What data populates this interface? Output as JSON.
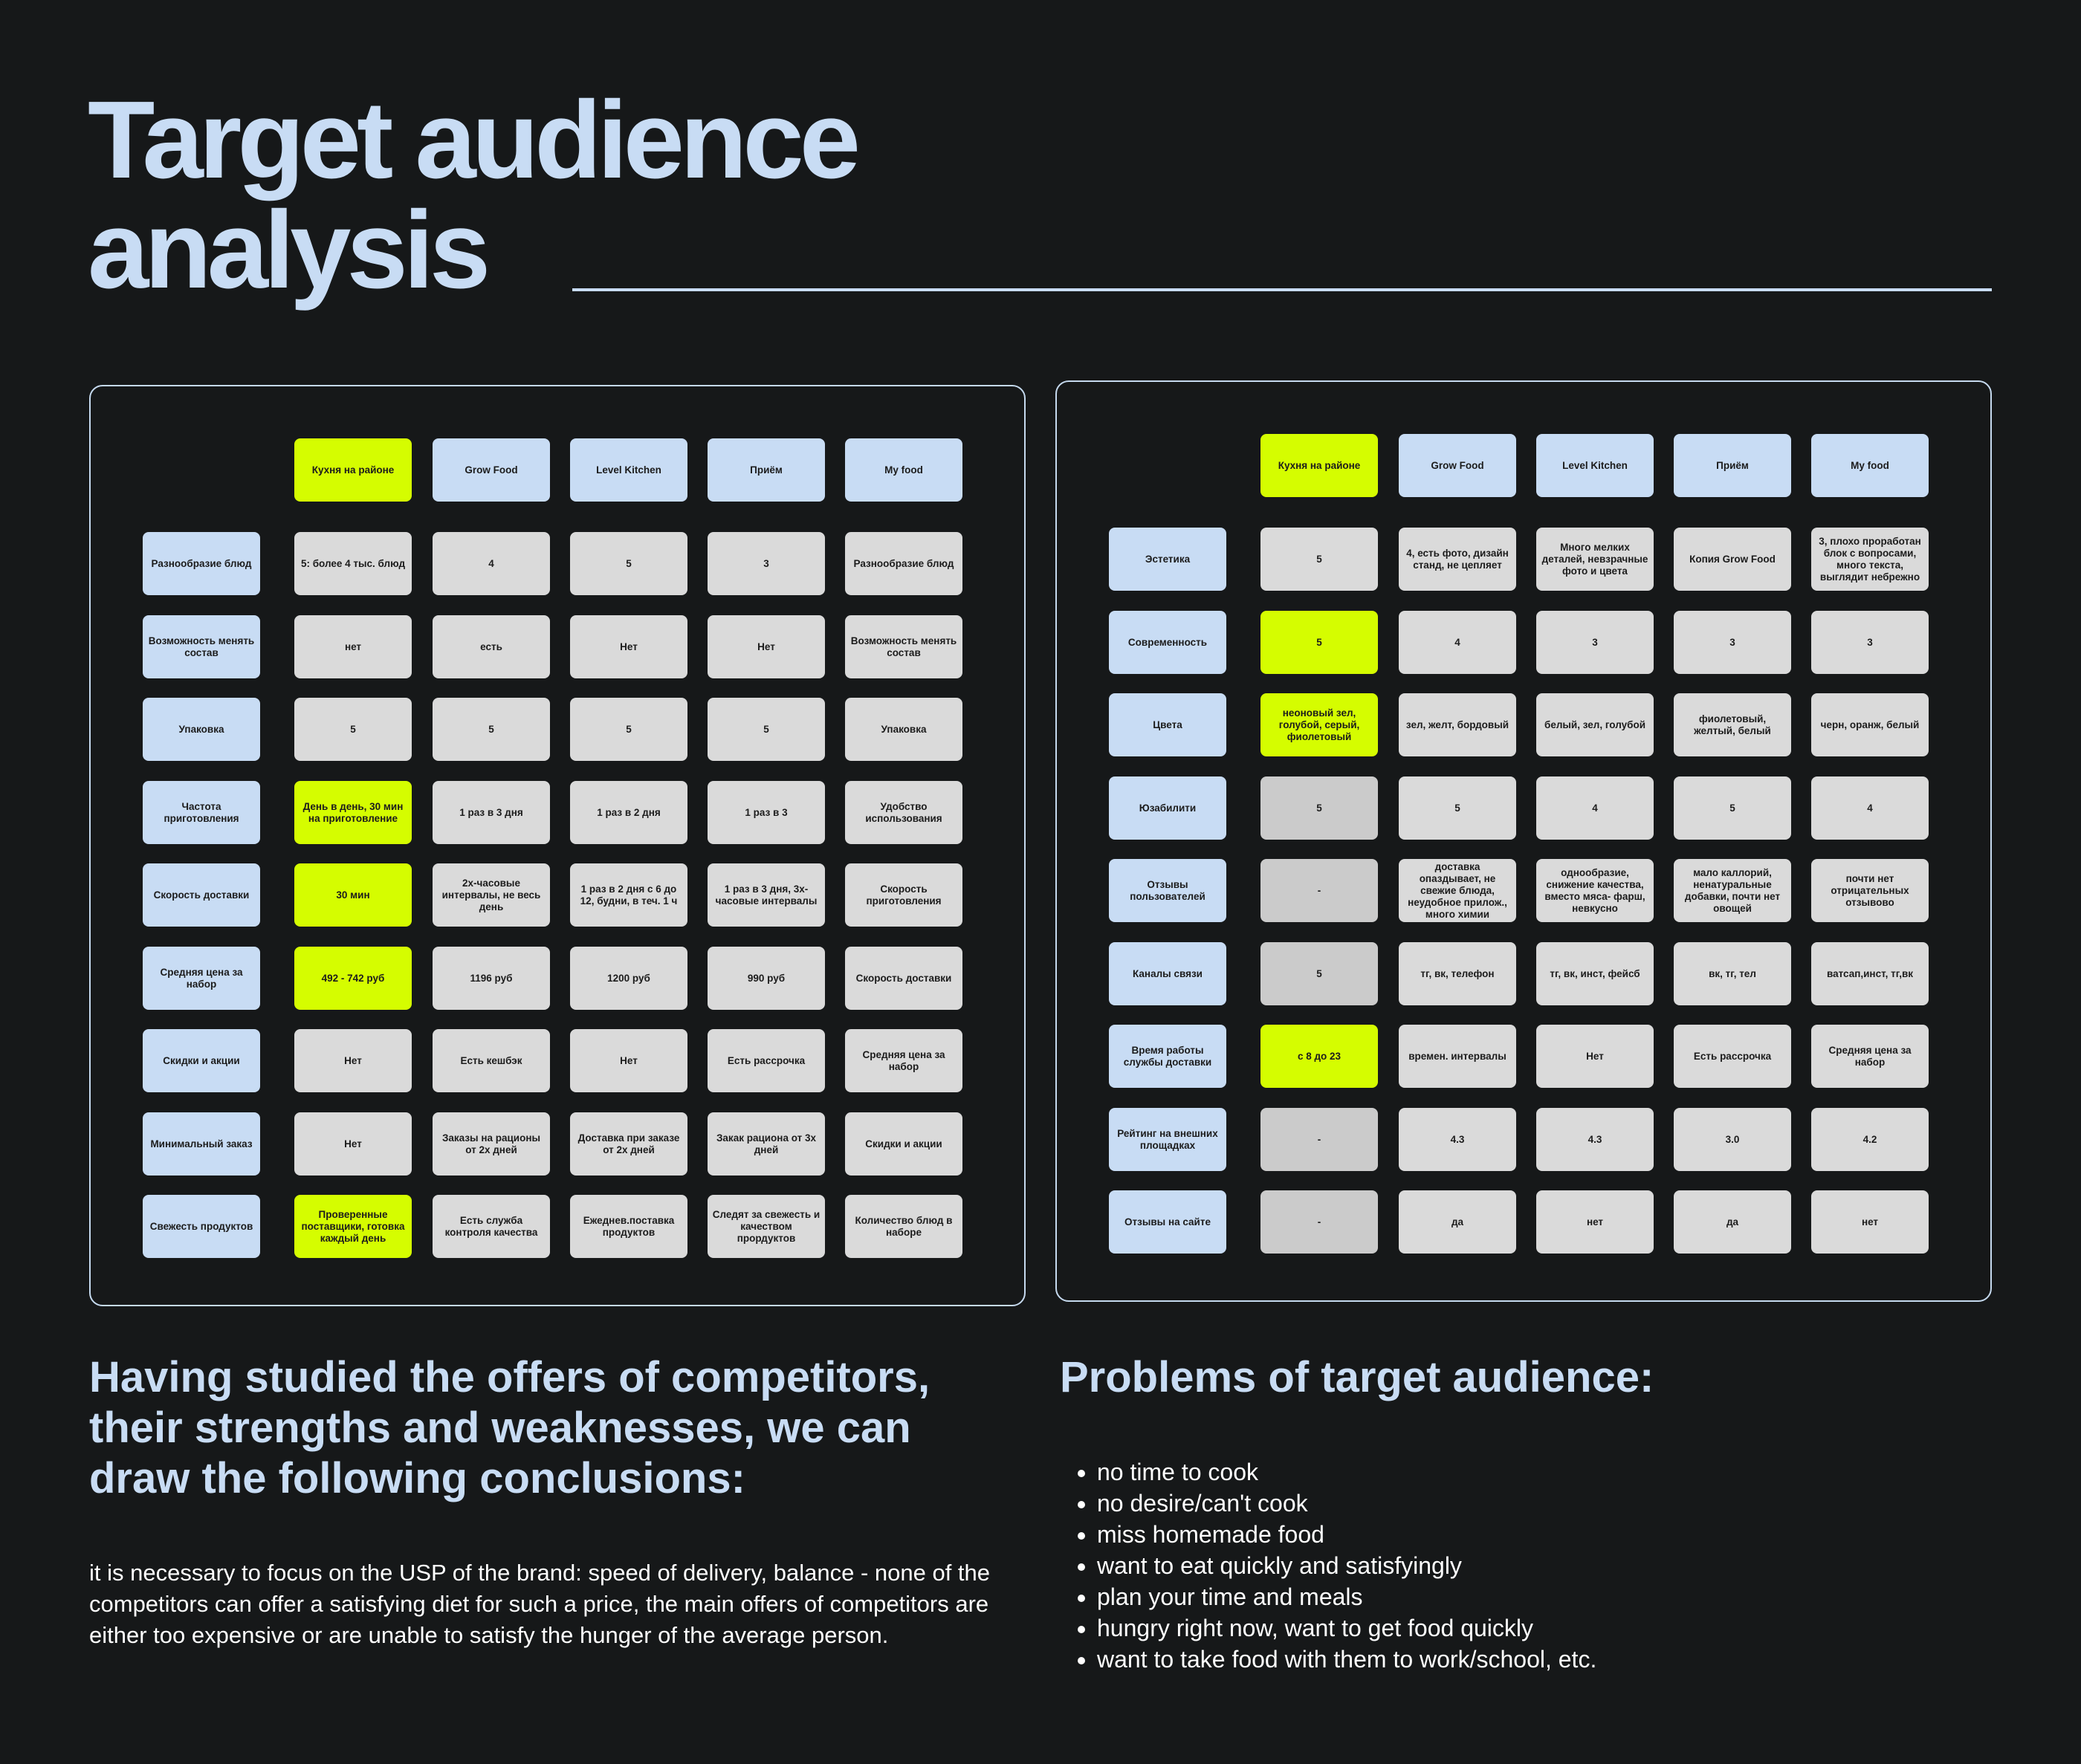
{
  "header": {
    "title_line1": "Target audience",
    "title_line2": "analysis"
  },
  "table1": {
    "columns": [
      "Кухня на районе",
      "Grow Food",
      "Level Kitchen",
      "Приём",
      "My food"
    ],
    "rows": [
      {
        "label": "Разнообразие блюд",
        "cells": [
          "5: более 4 тыс. блюд",
          "4",
          "5",
          "3",
          "Разнообразие блюд"
        ],
        "styles": [
          "grey",
          "grey",
          "grey",
          "grey",
          "grey"
        ]
      },
      {
        "label": "Возможность менять состав",
        "cells": [
          "нет",
          "есть",
          "Нет",
          "Нет",
          "Возможность менять состав"
        ],
        "styles": [
          "grey",
          "grey",
          "grey",
          "grey",
          "grey"
        ]
      },
      {
        "label": "Упаковка",
        "cells": [
          "5",
          "5",
          "5",
          "5",
          "Упаковка"
        ],
        "styles": [
          "grey",
          "grey",
          "grey",
          "grey",
          "grey"
        ]
      },
      {
        "label": "Частота приготовления",
        "cells": [
          "День в день, 30 мин на приготовление",
          "1 раз в 3 дня",
          "1 раз в 2 дня",
          "1 раз в 3",
          "Удобство использования"
        ],
        "styles": [
          "hl",
          "grey",
          "grey",
          "grey",
          "grey"
        ]
      },
      {
        "label": "Скорость доставки",
        "cells": [
          "30 мин",
          "2х-часовые интервалы, не весь день",
          "1 раз в 2 дня с 6 до 12, будни, в теч. 1 ч",
          "1 раз в 3 дня, 3х-часовые интервалы",
          "Скорость приготовления"
        ],
        "styles": [
          "hl",
          "grey",
          "grey",
          "grey",
          "grey"
        ]
      },
      {
        "label": "Средняя цена за набор",
        "cells": [
          "492 - 742 руб",
          "1196 руб",
          "1200 руб",
          "990 руб",
          "Скорость доставки"
        ],
        "styles": [
          "hl",
          "grey",
          "grey",
          "grey",
          "grey"
        ]
      },
      {
        "label": "Скидки и акции",
        "cells": [
          "Нет",
          "Есть кешбэк",
          "Нет",
          "Есть рассрочка",
          "Средняя цена за набор"
        ],
        "styles": [
          "grey",
          "grey",
          "grey",
          "grey",
          "grey"
        ]
      },
      {
        "label": "Минимальный заказ",
        "cells": [
          "Нет",
          "Заказы на рационы от 2х дней",
          "Доставка при заказе от 2х дней",
          "Закак рациона от 3х дней",
          "Скидки и акции"
        ],
        "styles": [
          "grey",
          "grey",
          "grey",
          "grey",
          "grey"
        ]
      },
      {
        "label": "Свежесть продуктов",
        "cells": [
          "Проверенные поставщики, готовка каждый день",
          "Есть служба контроля качества",
          "Ежеднев.поставка продуктов",
          "Следят за свежесть и качеством прордуктов",
          "Количество блюд в наборе"
        ],
        "styles": [
          "hl",
          "grey",
          "grey",
          "grey",
          "grey"
        ]
      }
    ]
  },
  "table2": {
    "columns": [
      "Кухня на районе",
      "Grow Food",
      "Level Kitchen",
      "Приём",
      "My food"
    ],
    "rows": [
      {
        "label": "Эстетика",
        "cells": [
          "5",
          "4, есть фото, дизайн станд, не цепляет",
          "Много мелких деталей, невзрачные фото и цвета",
          "Копия Grow Food",
          "3, плохо проработан блок с вопросами, много текста, выглядит небрежно"
        ],
        "styles": [
          "grey",
          "grey",
          "grey",
          "grey",
          "grey"
        ]
      },
      {
        "label": "Современность",
        "cells": [
          "5",
          "4",
          "3",
          "3",
          "3"
        ],
        "styles": [
          "hl",
          "grey",
          "grey",
          "grey",
          "grey"
        ]
      },
      {
        "label": "Цвета",
        "cells": [
          "неоновый зел, голубой, серый, фиолетовый",
          "зел, желт, бордовый",
          "белый, зел, голубой",
          "фиолетовый, желтый, белый",
          "черн, оранж, белый"
        ],
        "styles": [
          "hl",
          "grey",
          "grey",
          "grey",
          "grey"
        ]
      },
      {
        "label": "Юзабилити",
        "cells": [
          "5",
          "5",
          "4",
          "5",
          "4"
        ],
        "styles": [
          "dgrey",
          "grey",
          "grey",
          "grey",
          "grey"
        ]
      },
      {
        "label": "Отзывы пользователей",
        "cells": [
          "-",
          "доставка опаздывает, не свежие блюда, неудобное прилож., много химии",
          "однообразие, снижение качества, вместо мяса- фарш, невкусно",
          "мало каллорий, ненатуральные добавки, почти нет овощей",
          "почти нет отрицательных отзывово"
        ],
        "styles": [
          "dgrey",
          "grey",
          "grey",
          "grey",
          "grey"
        ]
      },
      {
        "label": "Каналы связи",
        "cells": [
          "5",
          "тг, вк, телефон",
          "тг, вк, инст, фейсб",
          "вк, тг, тел",
          "ватсап,инст, тг,вк"
        ],
        "styles": [
          "dgrey",
          "grey",
          "grey",
          "grey",
          "grey"
        ]
      },
      {
        "label": "Время работы службы доставки",
        "cells": [
          "с 8 до 23",
          "времен. интервалы",
          "Нет",
          "Есть рассрочка",
          "Средняя цена за набор"
        ],
        "styles": [
          "hl",
          "grey",
          "grey",
          "grey",
          "grey"
        ]
      },
      {
        "label": "Рейтинг на внешних площадках",
        "cells": [
          "-",
          "4.3",
          "4.3",
          "3.0",
          "4.2"
        ],
        "styles": [
          "dgrey",
          "grey",
          "grey",
          "grey",
          "grey"
        ]
      },
      {
        "label": "Отзывы на сайте",
        "cells": [
          "-",
          "да",
          "нет",
          "да",
          "нет"
        ],
        "styles": [
          "dgrey",
          "grey",
          "grey",
          "grey",
          "grey"
        ]
      }
    ]
  },
  "conclusions": {
    "heading": "Having studied the offers of competitors, their strengths and weaknesses, we can draw the following conclusions:",
    "body": "it is necessary to focus on the USP of the brand: speed of delivery, balance - none of the competitors can offer a satisfying diet for such a price, the main offers of competitors are either too expensive or are unable to satisfy the hunger of the average person."
  },
  "problems": {
    "heading": "Problems of target audience:",
    "items": [
      "no time to cook",
      "no desire/can't cook",
      "miss homemade food",
      "want to eat quickly and satisfyingly",
      "plan your time and meals",
      "hungry right now, want to get food quickly",
      "want to take food with them to work/school, etc."
    ]
  },
  "colors": {
    "background": "#161819",
    "title": "#c8dcf4",
    "header_cell": "#c8dcf4",
    "value_cell": "#dadada",
    "highlight_cell": "#d5fd00"
  }
}
